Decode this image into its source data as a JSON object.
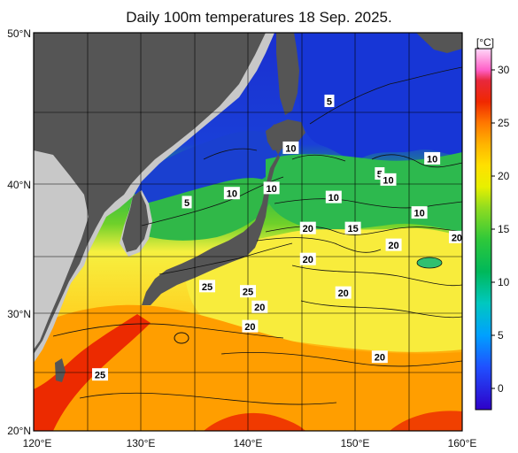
{
  "title": "Daily 100m temperatures 18 Sep. 2025.",
  "map": {
    "lat_labels": [
      "50°N",
      "40°N",
      "30°N",
      "20°N"
    ],
    "lon_labels": [
      "120°E",
      "130°E",
      "140°E",
      "150°E",
      "160°E"
    ],
    "contour_labels": [
      {
        "text": "5",
        "lon": 147.6,
        "lat": 45.5
      },
      {
        "text": "10",
        "lon": 144.0,
        "lat": 42.4
      },
      {
        "text": "10",
        "lon": 157.2,
        "lat": 41.7
      },
      {
        "text": "5",
        "lon": 152.3,
        "lat": 40.7
      },
      {
        "text": "10",
        "lon": 153.1,
        "lat": 40.3
      },
      {
        "text": "10",
        "lon": 142.2,
        "lat": 39.7
      },
      {
        "text": "10",
        "lon": 138.5,
        "lat": 39.3
      },
      {
        "text": "5",
        "lon": 134.3,
        "lat": 38.6
      },
      {
        "text": "10",
        "lon": 148.0,
        "lat": 39.0
      },
      {
        "text": "10",
        "lon": 156.0,
        "lat": 37.8
      },
      {
        "text": "20",
        "lon": 145.6,
        "lat": 36.6
      },
      {
        "text": "15",
        "lon": 149.8,
        "lat": 36.6
      },
      {
        "text": "20",
        "lon": 159.5,
        "lat": 35.9
      },
      {
        "text": "20",
        "lon": 153.6,
        "lat": 35.3
      },
      {
        "text": "20",
        "lon": 145.6,
        "lat": 34.2
      },
      {
        "text": "25",
        "lon": 136.2,
        "lat": 32.1
      },
      {
        "text": "25",
        "lon": 140.0,
        "lat": 31.7
      },
      {
        "text": "20",
        "lon": 148.9,
        "lat": 31.6
      },
      {
        "text": "20",
        "lon": 141.1,
        "lat": 30.5
      },
      {
        "text": "20",
        "lon": 140.2,
        "lat": 28.9
      },
      {
        "text": "20",
        "lon": 152.3,
        "lat": 26.3
      },
      {
        "text": "25",
        "lon": 126.2,
        "lat": 24.8
      }
    ]
  },
  "colorbar": {
    "unit": "[°C]",
    "ticks": [
      "30",
      "25",
      "20",
      "15",
      "10",
      "5",
      "0"
    ],
    "stops": [
      {
        "value": -2,
        "color": "#2e00c8"
      },
      {
        "value": 2,
        "color": "#2050ff"
      },
      {
        "value": 5,
        "color": "#00a0ff"
      },
      {
        "value": 8,
        "color": "#00c8c0"
      },
      {
        "value": 11,
        "color": "#00b85a"
      },
      {
        "value": 14,
        "color": "#2ec83a"
      },
      {
        "value": 17,
        "color": "#90dc20"
      },
      {
        "value": 19,
        "color": "#e8f000"
      },
      {
        "value": 21,
        "color": "#ffe000"
      },
      {
        "value": 23,
        "color": "#ffb400"
      },
      {
        "value": 25,
        "color": "#ff7800"
      },
      {
        "value": 27,
        "color": "#f02800"
      },
      {
        "value": 29,
        "color": "#e8283c"
      },
      {
        "value": 30,
        "color": "#ff60c8"
      },
      {
        "value": 32,
        "color": "#ffd8f8"
      }
    ]
  },
  "colors": {
    "land": "#555555",
    "foreign_land": "#c8c8c8",
    "ocean_north": "#1a2fd0",
    "ocean_green": "#22b84a",
    "ocean_yellow": "#f6f040",
    "ocean_orange": "#ff9c00",
    "ocean_red": "#ee2800"
  }
}
